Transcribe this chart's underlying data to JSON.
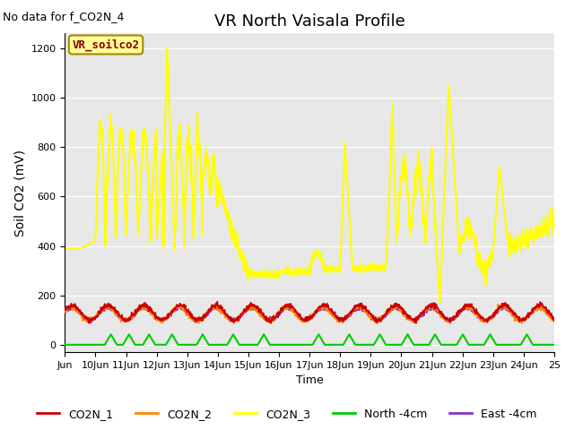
{
  "title": "VR North Vaisala Profile",
  "subtitle": "No data for f_CO2N_4",
  "ylabel": "Soil CO2 (mV)",
  "xlabel": "Time",
  "legend_label": "VR_soilco2",
  "ylim": [
    -30,
    1260
  ],
  "xlim": [
    0,
    16
  ],
  "bg_color": "#e8e8e8",
  "plot_bg_color": "#e8e8e8",
  "series": {
    "CO2N_1": {
      "color": "#cc0000",
      "linewidth": 1.2
    },
    "CO2N_2": {
      "color": "#ff8800",
      "linewidth": 1.2
    },
    "CO2N_3": {
      "color": "#ffff00",
      "linewidth": 1.5
    },
    "North_4cm": {
      "color": "#00cc00",
      "linewidth": 1.5
    },
    "East_4cm": {
      "color": "#8833cc",
      "linewidth": 1.5
    }
  },
  "xtick_labels": [
    "Jun",
    "10Jun",
    "11Jun",
    "12Jun",
    "13Jun",
    "14Jun",
    "15Jun",
    "16Jun",
    "17Jun",
    "18Jun",
    "19Jun",
    "20Jun",
    "21Jun",
    "22Jun",
    "23Jun",
    "24Jun",
    "25"
  ],
  "ytick_values": [
    0,
    200,
    400,
    600,
    800,
    1000,
    1200
  ],
  "legend_box_facecolor": "#ffff99",
  "legend_box_edgecolor": "#aa8800",
  "subtitle_fontsize": 9,
  "title_fontsize": 13,
  "tick_fontsize": 8,
  "ylabel_fontsize": 10,
  "xlabel_fontsize": 9,
  "legend_fontsize": 9,
  "annotation_fontsize": 9
}
